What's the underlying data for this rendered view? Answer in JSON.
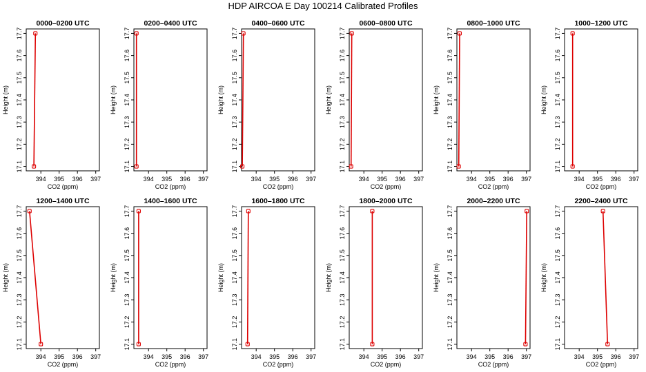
{
  "title": "HDP AIRCOA E  Day 100214  Calibrated Profiles",
  "colors": {
    "profile": "#dd0000",
    "frame": "#000000",
    "background": "#ffffff"
  },
  "chart_data": [
    {
      "type": "line",
      "title": "0000–0200 UTC",
      "xlabel": "CO2 (ppm)",
      "ylabel": "Height (m)",
      "xlim": [
        393.2,
        397.2
      ],
      "ylim": [
        17.08,
        17.72
      ],
      "xticks": [
        394,
        395,
        396,
        397
      ],
      "yticks": [
        17.1,
        17.2,
        17.3,
        17.4,
        17.5,
        17.6,
        17.7
      ],
      "series": [
        {
          "x": [
            393.62,
            393.7
          ],
          "y": [
            17.1,
            17.7
          ]
        }
      ]
    },
    {
      "type": "line",
      "title": "0200–0400 UTC",
      "xlabel": "CO2 (ppm)",
      "ylabel": "Height (m)",
      "xlim": [
        393.2,
        397.2
      ],
      "ylim": [
        17.08,
        17.72
      ],
      "xticks": [
        394,
        395,
        396,
        397
      ],
      "yticks": [
        17.1,
        17.2,
        17.3,
        17.4,
        17.5,
        17.6,
        17.7
      ],
      "series": [
        {
          "x": [
            393.34,
            393.34
          ],
          "y": [
            17.1,
            17.7
          ]
        }
      ]
    },
    {
      "type": "line",
      "title": "0400–0600 UTC",
      "xlabel": "CO2 (ppm)",
      "ylabel": "Height (m)",
      "xlim": [
        393.2,
        397.2
      ],
      "ylim": [
        17.08,
        17.72
      ],
      "xticks": [
        394,
        395,
        396,
        397
      ],
      "yticks": [
        17.1,
        17.2,
        17.3,
        17.4,
        17.5,
        17.6,
        17.7
      ],
      "series": [
        {
          "x": [
            393.24,
            393.3
          ],
          "y": [
            17.1,
            17.7
          ]
        }
      ]
    },
    {
      "type": "line",
      "title": "0600–0800 UTC",
      "xlabel": "CO2 (ppm)",
      "ylabel": "Height (m)",
      "xlim": [
        393.2,
        397.2
      ],
      "ylim": [
        17.08,
        17.72
      ],
      "xticks": [
        394,
        395,
        396,
        397
      ],
      "yticks": [
        17.1,
        17.2,
        17.3,
        17.4,
        17.5,
        17.6,
        17.7
      ],
      "series": [
        {
          "x": [
            393.3,
            393.34
          ],
          "y": [
            17.1,
            17.7
          ]
        }
      ]
    },
    {
      "type": "line",
      "title": "0800–1000 UTC",
      "xlabel": "CO2 (ppm)",
      "ylabel": "Height (m)",
      "xlim": [
        393.2,
        397.2
      ],
      "ylim": [
        17.08,
        17.72
      ],
      "xticks": [
        394,
        395,
        396,
        397
      ],
      "yticks": [
        17.1,
        17.2,
        17.3,
        17.4,
        17.5,
        17.6,
        17.7
      ],
      "series": [
        {
          "x": [
            393.3,
            393.35
          ],
          "y": [
            17.1,
            17.7
          ]
        }
      ]
    },
    {
      "type": "line",
      "title": "1000–1200 UTC",
      "xlabel": "CO2 (ppm)",
      "ylabel": "Height (m)",
      "xlim": [
        393.2,
        397.2
      ],
      "ylim": [
        17.08,
        17.72
      ],
      "xticks": [
        394,
        395,
        396,
        397
      ],
      "yticks": [
        17.1,
        17.2,
        17.3,
        17.4,
        17.5,
        17.6,
        17.7
      ],
      "series": [
        {
          "x": [
            393.64,
            393.64
          ],
          "y": [
            17.1,
            17.7
          ]
        }
      ]
    },
    {
      "type": "line",
      "title": "1200–1400 UTC",
      "xlabel": "CO2 (ppm)",
      "ylabel": "Height (m)",
      "xlim": [
        393.2,
        397.2
      ],
      "ylim": [
        17.08,
        17.72
      ],
      "xticks": [
        394,
        395,
        396,
        397
      ],
      "yticks": [
        17.1,
        17.2,
        17.3,
        17.4,
        17.5,
        17.6,
        17.7
      ],
      "series": [
        {
          "x": [
            394.0,
            393.38
          ],
          "y": [
            17.1,
            17.7
          ]
        }
      ]
    },
    {
      "type": "line",
      "title": "1400–1600 UTC",
      "xlabel": "CO2 (ppm)",
      "ylabel": "Height (m)",
      "xlim": [
        393.2,
        397.2
      ],
      "ylim": [
        17.08,
        17.72
      ],
      "xticks": [
        394,
        395,
        396,
        397
      ],
      "yticks": [
        17.1,
        17.2,
        17.3,
        17.4,
        17.5,
        17.6,
        17.7
      ],
      "series": [
        {
          "x": [
            393.46,
            393.46
          ],
          "y": [
            17.1,
            17.7
          ]
        }
      ]
    },
    {
      "type": "line",
      "title": "1600–1800 UTC",
      "xlabel": "CO2 (ppm)",
      "ylabel": "Height (m)",
      "xlim": [
        393.2,
        397.2
      ],
      "ylim": [
        17.08,
        17.72
      ],
      "xticks": [
        394,
        395,
        396,
        397
      ],
      "yticks": [
        17.1,
        17.2,
        17.3,
        17.4,
        17.5,
        17.6,
        17.7
      ],
      "series": [
        {
          "x": [
            393.53,
            393.57
          ],
          "y": [
            17.1,
            17.7
          ]
        }
      ]
    },
    {
      "type": "line",
      "title": "1800–2000 UTC",
      "xlabel": "CO2 (ppm)",
      "ylabel": "Height (m)",
      "xlim": [
        393.2,
        397.2
      ],
      "ylim": [
        17.08,
        17.72
      ],
      "xticks": [
        394,
        395,
        396,
        397
      ],
      "yticks": [
        17.1,
        17.2,
        17.3,
        17.4,
        17.5,
        17.6,
        17.7
      ],
      "series": [
        {
          "x": [
            394.46,
            394.46
          ],
          "y": [
            17.1,
            17.7
          ]
        }
      ]
    },
    {
      "type": "line",
      "title": "2000–2200 UTC",
      "xlabel": "CO2 (ppm)",
      "ylabel": "Height (m)",
      "xlim": [
        393.2,
        397.2
      ],
      "ylim": [
        17.08,
        17.72
      ],
      "xticks": [
        394,
        395,
        396,
        397
      ],
      "yticks": [
        17.1,
        17.2,
        17.3,
        17.4,
        17.5,
        17.6,
        17.7
      ],
      "series": [
        {
          "x": [
            396.95,
            397.02
          ],
          "y": [
            17.1,
            17.7
          ]
        }
      ]
    },
    {
      "type": "line",
      "title": "2200–2400 UTC",
      "xlabel": "CO2 (ppm)",
      "ylabel": "Height (m)",
      "xlim": [
        393.2,
        397.2
      ],
      "ylim": [
        17.08,
        17.72
      ],
      "xticks": [
        394,
        395,
        396,
        397
      ],
      "yticks": [
        17.1,
        17.2,
        17.3,
        17.4,
        17.5,
        17.6,
        17.7
      ],
      "series": [
        {
          "x": [
            395.55,
            395.3
          ],
          "y": [
            17.1,
            17.7
          ]
        }
      ]
    }
  ]
}
